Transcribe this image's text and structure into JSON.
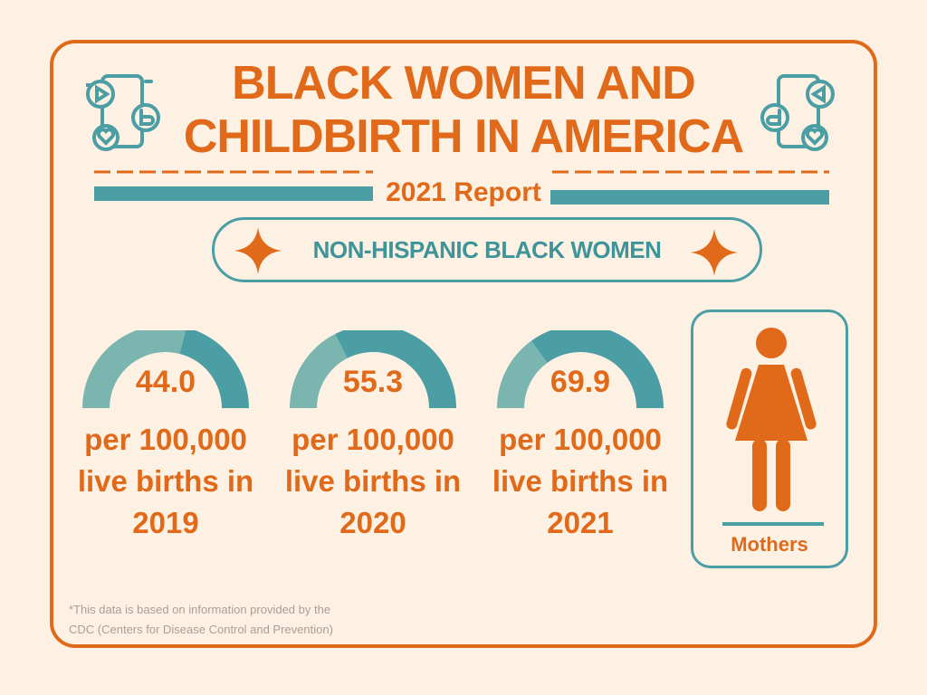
{
  "header": {
    "title_line1": "BLACK WOMEN AND",
    "title_line2": "CHILDBIRTH IN AMERICA",
    "subtitle": "2021 Report"
  },
  "banner": {
    "text": "NON-HISPANIC BLACK WOMEN",
    "icon": "four-point-star-icon"
  },
  "stats": [
    {
      "value": "44.0",
      "line1": "per 100,000",
      "line2": "live births in",
      "year": "2019",
      "fill_fraction": 0.58
    },
    {
      "value": "55.3",
      "line1": "per 100,000",
      "line2": "live births in",
      "year": "2020",
      "fill_fraction": 0.35
    },
    {
      "value": "69.9",
      "line1": "per 100,000",
      "line2": "live births in",
      "year": "2021",
      "fill_fraction": 0.3
    }
  ],
  "mothers": {
    "label": "Mothers",
    "icon": "woman-icon"
  },
  "footnote": {
    "line1": "*This data is based on information provided by the",
    "line2": "CDC (Centers for Disease Control and Prevention)"
  },
  "colors": {
    "orange": "#e0691a",
    "teal": "#4b9ea4",
    "teal_light": "#7ab5b0",
    "background": "#fdf1e3"
  }
}
